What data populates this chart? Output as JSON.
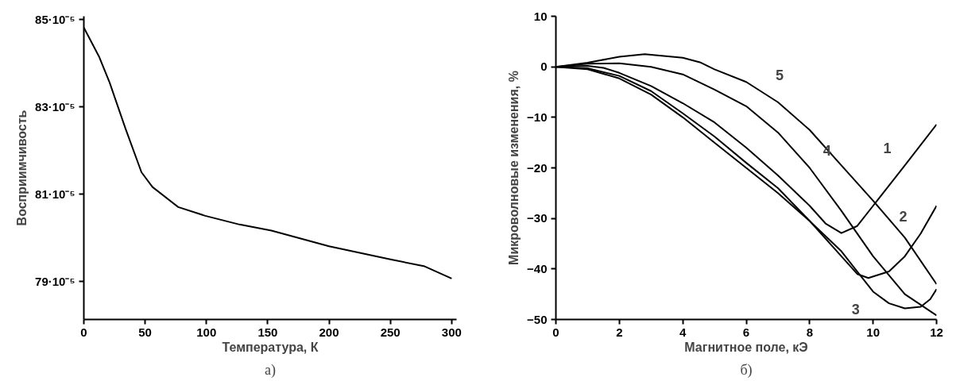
{
  "chart_data": [
    {
      "type": "line",
      "xlabel": "Температура, К",
      "ylabel": "Восприимчивость",
      "xlim": [
        0,
        304
      ],
      "ylim": [
        0.0007812,
        0.0008508
      ],
      "xticks": [
        0,
        50,
        100,
        150,
        200,
        250,
        300
      ],
      "yticks": [
        {
          "value": 0.00079,
          "label": "79·10⁻⁵"
        },
        {
          "value": 0.00081,
          "label": "81·10⁻⁵"
        },
        {
          "value": 0.00083,
          "label": "83·10⁻⁵"
        },
        {
          "value": 0.00085,
          "label": "85·10⁻⁵"
        }
      ],
      "series": [
        {
          "color": "#000000",
          "x": [
            0,
            12.3,
            21,
            34,
            47,
            56,
            77,
            99,
            127,
            153,
            200,
            250,
            278,
            300
          ],
          "values": [
            0.0008482,
            0.0008416,
            0.0008356,
            0.000825,
            0.000815,
            0.0008116,
            0.000807,
            0.000805,
            0.000803,
            0.0008016,
            0.000798,
            0.000795,
            0.0007934,
            0.0007906
          ]
        }
      ],
      "annotations": [
        "а)"
      ]
    },
    {
      "type": "line",
      "xlabel": "Магнитное поле, кЭ",
      "ylabel": "Микроволновые изменения, %",
      "xlim": [
        0,
        12
      ],
      "ylim": [
        -50,
        10
      ],
      "xticks": [
        0,
        2,
        4,
        6,
        8,
        10,
        12
      ],
      "yticks": [
        -50,
        -40,
        -30,
        -20,
        -10,
        0,
        10
      ],
      "series": [
        {
          "color": "#000000",
          "x": [
            0,
            0.5,
            1,
            1.5,
            2,
            3,
            4,
            5,
            6,
            7,
            8,
            8.5,
            9,
            9.5,
            10,
            11,
            12
          ],
          "values": [
            0,
            0.1,
            0.2,
            -0.2,
            -1.2,
            -3.8,
            -7.2,
            -11,
            -16,
            -21.5,
            -27.5,
            -31,
            -32.9,
            -31.5,
            -27.5,
            -19.5,
            -11.4
          ]
        },
        {
          "color": "#000000",
          "x": [
            0,
            1,
            2,
            3,
            4,
            5,
            6,
            7,
            8,
            8.5,
            9,
            9.5,
            9.85,
            10.5,
            11,
            11.5,
            12
          ],
          "values": [
            0,
            -0.3,
            -1.8,
            -4.8,
            -9.2,
            -13.8,
            -19,
            -24,
            -30.5,
            -34,
            -37.5,
            -41,
            -41.8,
            -40.5,
            -37.5,
            -33,
            -27.5
          ]
        },
        {
          "color": "#000000",
          "x": [
            0,
            1,
            2,
            3,
            4,
            5,
            6,
            7,
            8,
            8.5,
            9,
            9.5,
            10,
            10.5,
            11,
            11.5,
            11.8,
            12
          ],
          "values": [
            0,
            -0.5,
            -2.3,
            -5.5,
            -10,
            -15,
            -20,
            -25,
            -30.5,
            -33.5,
            -36.5,
            -40.5,
            -44.5,
            -46.8,
            -47.8,
            -47.5,
            -46,
            -44
          ]
        },
        {
          "color": "#000000",
          "x": [
            0,
            1,
            2,
            3,
            4,
            5,
            6,
            7,
            8,
            9,
            10,
            11,
            12
          ],
          "values": [
            0,
            0.6,
            0.7,
            0,
            -1.5,
            -4.5,
            -7.8,
            -13,
            -20,
            -28.5,
            -37.5,
            -45,
            -49.2
          ]
        },
        {
          "color": "#000000",
          "x": [
            0,
            1,
            2,
            2.8,
            4,
            4.54,
            5,
            6,
            7,
            8,
            9,
            10,
            11,
            12
          ],
          "values": [
            0,
            0.8,
            2,
            2.5,
            1.8,
            0.9,
            -0.5,
            -3,
            -7,
            -12.5,
            -19.5,
            -26.5,
            -33.8,
            -43
          ]
        }
      ],
      "annotations": [
        {
          "text": "1",
          "x": 11,
          "y": -19.5
        },
        {
          "text": "2",
          "x": 11.5,
          "y": -33
        },
        {
          "text": "3",
          "x": 10,
          "y": -44.5
        },
        {
          "text": "4",
          "x": 8,
          "y": -20
        },
        {
          "text": "5",
          "x": 6.5,
          "y": -5
        },
        "б)"
      ]
    }
  ]
}
